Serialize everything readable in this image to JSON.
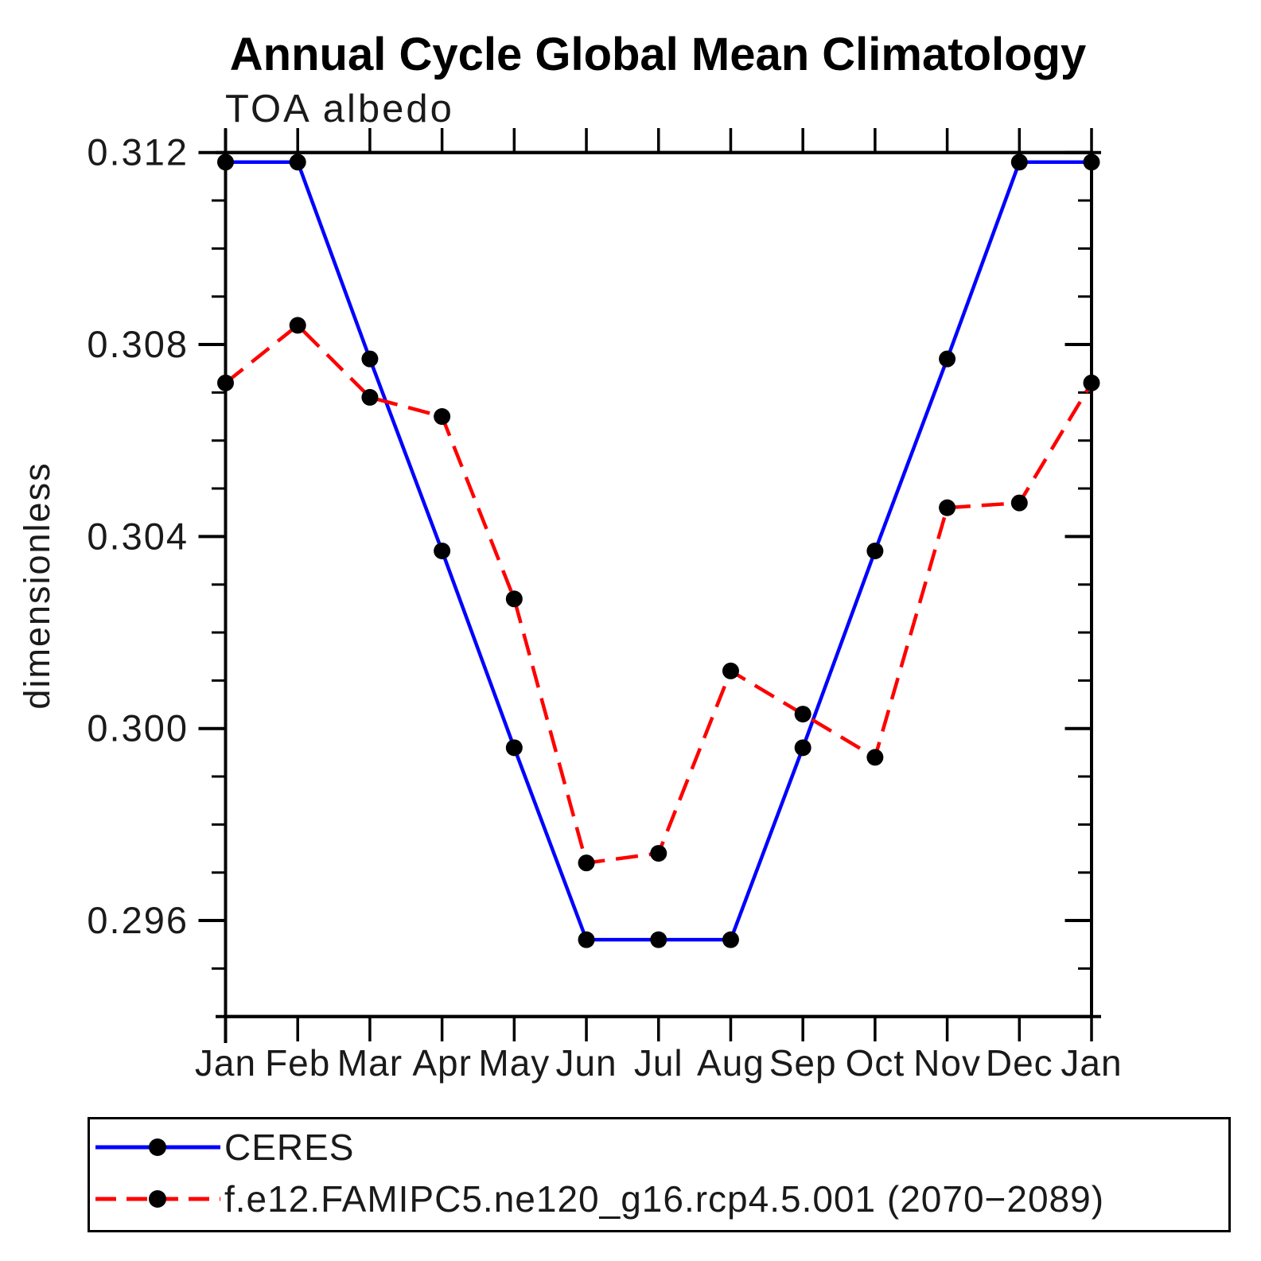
{
  "title": "Annual Cycle Global Mean Climatology",
  "subtitle": "TOA albedo",
  "y_axis_label": "dimensionless",
  "colors": {
    "ceres_line": "#0000ff",
    "model_line": "#ff0000",
    "marker": "#000000",
    "axis": "#000000"
  },
  "legend": [
    {
      "label": "CERES",
      "style": "solid",
      "color": "#0000ff"
    },
    {
      "label": "f.e12.FAMIPC5.ne120_g16.rcp4.5.001 (2070−2089)",
      "style": "dashed",
      "color": "#ff0000"
    }
  ],
  "chart_data": {
    "type": "line",
    "title": "Annual Cycle Global Mean Climatology",
    "subtitle": "TOA albedo",
    "ylabel": "dimensionless",
    "x": [
      "Jan",
      "Feb",
      "Mar",
      "Apr",
      "May",
      "Jun",
      "Jul",
      "Aug",
      "Sep",
      "Oct",
      "Nov",
      "Dec",
      "Jan"
    ],
    "series": [
      {
        "name": "CERES",
        "color": "#0000ff",
        "dash": false,
        "values": [
          0.3118,
          0.3118,
          0.3077,
          0.3037,
          0.2996,
          0.2956,
          0.2956,
          0.2956,
          0.2996,
          0.3037,
          0.3077,
          0.3118,
          0.3118
        ]
      },
      {
        "name": "f.e12.FAMIPC5.ne120_g16.rcp4.5.001 (2070−2089)",
        "color": "#ff0000",
        "dash": true,
        "values": [
          0.3072,
          0.3084,
          0.3069,
          0.3065,
          0.3027,
          0.2972,
          0.2974,
          0.3012,
          0.3003,
          0.2994,
          0.3046,
          0.3047,
          0.3072
        ]
      }
    ],
    "ylim": [
      0.294,
      0.312
    ],
    "yticks_major": [
      0.312,
      0.308,
      0.304,
      0.3,
      0.296
    ],
    "ytick_labels": [
      "0.312",
      "0.308",
      "0.304",
      "0.300",
      "0.296"
    ],
    "ytick_minor_step": 0.001,
    "grid": false,
    "legend_position": "bottom"
  }
}
